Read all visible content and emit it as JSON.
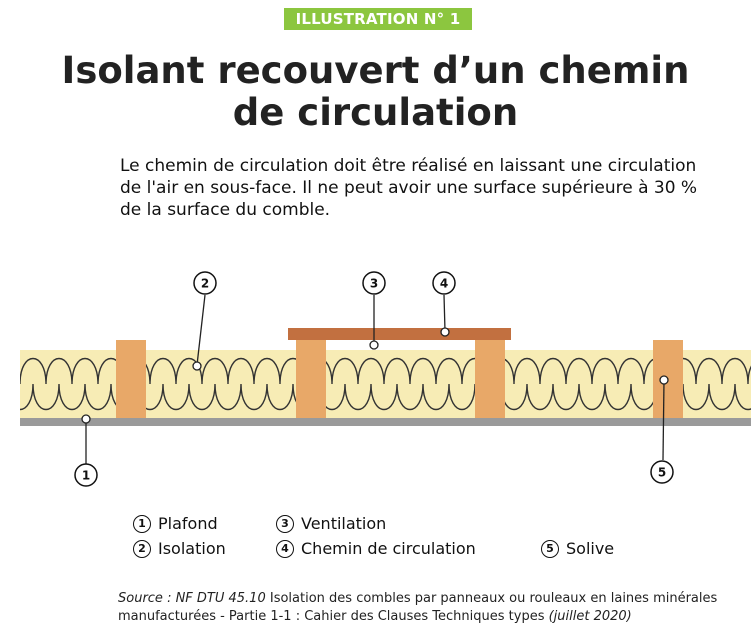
{
  "header": {
    "tag": "ILLUSTRATION N° 1"
  },
  "title": {
    "line1": "Isolant recouvert d’un chemin",
    "line2": "de circulation"
  },
  "description": {
    "line1": "Le chemin de circulation doit être réalisé en laissant une circulation",
    "line2": "de l'air en sous-face. Il ne peut avoir une surface supérieure à 30 %",
    "line3": "de la surface du comble."
  },
  "callouts": [
    {
      "number": "1"
    },
    {
      "number": "2"
    },
    {
      "number": "3"
    },
    {
      "number": "4"
    },
    {
      "number": "5"
    }
  ],
  "legend": [
    {
      "number": "1",
      "label": "Plafond"
    },
    {
      "number": "2",
      "label": "Isolation"
    },
    {
      "number": "3",
      "label": "Ventilation"
    },
    {
      "number": "4",
      "label": "Chemin de circulation"
    },
    {
      "number": "5",
      "label": "Solive"
    }
  ],
  "source": {
    "prefix": "Source : NF DTU 45.10",
    "line1_text": " Isolation des combles par panneaux ou rouleaux en laines minérales",
    "line2_text": "manufacturées - Partie 1-1 : Cahier des Clauses Techniques types ",
    "date": "(juillet 2020)"
  },
  "colors": {
    "tag_bg": "#8cc63f",
    "insulation": "#f7ecb5",
    "joist": "#e8a868",
    "walkway": "#c27040",
    "ceiling": "#9a9a9a"
  }
}
